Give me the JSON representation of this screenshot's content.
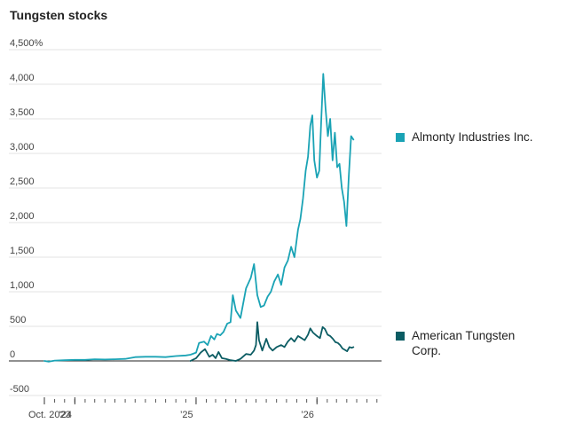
{
  "chart_data": {
    "type": "line",
    "title": "Tungsten stocks",
    "xlabel": "",
    "ylabel": "",
    "ylim": [
      -500,
      4500
    ],
    "yticks": [
      {
        "value": 4500,
        "label": "4,500%"
      },
      {
        "value": 4000,
        "label": "4,000"
      },
      {
        "value": 3500,
        "label": "3,500"
      },
      {
        "value": 3000,
        "label": "3,000"
      },
      {
        "value": 2500,
        "label": "2,500"
      },
      {
        "value": 2000,
        "label": "2,000"
      },
      {
        "value": 1500,
        "label": "1,500"
      },
      {
        "value": 1000,
        "label": "1,000"
      },
      {
        "value": 500,
        "label": "500"
      },
      {
        "value": 0,
        "label": "0"
      },
      {
        "value": -500,
        "label": "-500"
      }
    ],
    "xlim": [
      "2023-10-01",
      "2026-07-15"
    ],
    "xticks": [
      {
        "date": "2023-10-01",
        "label": "Oct. 2023"
      },
      {
        "date": "2024-01-01",
        "label": "’24"
      },
      {
        "date": "2025-01-01",
        "label": "’25"
      },
      {
        "date": "2026-01-01",
        "label": "’26"
      }
    ],
    "minor_ticks": [
      "2023-10-01",
      "2023-11-01",
      "2023-12-01",
      "2024-01-01",
      "2024-02-01",
      "2024-03-01",
      "2024-04-01",
      "2024-05-01",
      "2024-06-01",
      "2024-07-01",
      "2024-08-01",
      "2024-09-01",
      "2024-10-01",
      "2024-11-01",
      "2024-12-01",
      "2025-01-01",
      "2025-02-01",
      "2025-03-01",
      "2025-04-01",
      "2025-05-01",
      "2025-06-01",
      "2025-07-01",
      "2025-08-01",
      "2025-09-01",
      "2025-10-01",
      "2025-11-01",
      "2025-12-01",
      "2026-01-01",
      "2026-02-01",
      "2026-03-01",
      "2026-04-01",
      "2026-05-01",
      "2026-06-01",
      "2026-07-01"
    ],
    "grid": true,
    "legend": "right",
    "series": [
      {
        "name": "Almonty Industries Inc.",
        "color": "#1aa3b5",
        "points": [
          [
            "2023-10-01",
            0
          ],
          [
            "2023-10-15",
            -10
          ],
          [
            "2023-11-01",
            5
          ],
          [
            "2023-12-01",
            10
          ],
          [
            "2024-01-01",
            15
          ],
          [
            "2024-02-01",
            15
          ],
          [
            "2024-03-01",
            25
          ],
          [
            "2024-04-01",
            20
          ],
          [
            "2024-05-01",
            25
          ],
          [
            "2024-06-01",
            30
          ],
          [
            "2024-07-01",
            55
          ],
          [
            "2024-08-01",
            60
          ],
          [
            "2024-09-01",
            60
          ],
          [
            "2024-10-01",
            55
          ],
          [
            "2024-11-01",
            70
          ],
          [
            "2024-12-01",
            80
          ],
          [
            "2024-12-15",
            90
          ],
          [
            "2025-01-01",
            120
          ],
          [
            "2025-01-10",
            260
          ],
          [
            "2025-01-25",
            280
          ],
          [
            "2025-02-05",
            230
          ],
          [
            "2025-02-15",
            360
          ],
          [
            "2025-02-25",
            310
          ],
          [
            "2025-03-05",
            390
          ],
          [
            "2025-03-15",
            370
          ],
          [
            "2025-03-25",
            420
          ],
          [
            "2025-04-05",
            540
          ],
          [
            "2025-04-15",
            560
          ],
          [
            "2025-04-22",
            950
          ],
          [
            "2025-05-01",
            730
          ],
          [
            "2025-05-15",
            620
          ],
          [
            "2025-06-01",
            1050
          ],
          [
            "2025-06-15",
            1200
          ],
          [
            "2025-06-25",
            1400
          ],
          [
            "2025-07-05",
            950
          ],
          [
            "2025-07-15",
            780
          ],
          [
            "2025-07-25",
            800
          ],
          [
            "2025-08-05",
            930
          ],
          [
            "2025-08-15",
            1000
          ],
          [
            "2025-08-25",
            1150
          ],
          [
            "2025-09-05",
            1250
          ],
          [
            "2025-09-15",
            1100
          ],
          [
            "2025-09-25",
            1350
          ],
          [
            "2025-10-05",
            1450
          ],
          [
            "2025-10-15",
            1650
          ],
          [
            "2025-10-25",
            1500
          ],
          [
            "2025-11-05",
            1900
          ],
          [
            "2025-11-12",
            2050
          ],
          [
            "2025-11-20",
            2350
          ],
          [
            "2025-11-28",
            2750
          ],
          [
            "2025-12-05",
            2950
          ],
          [
            "2025-12-12",
            3400
          ],
          [
            "2025-12-18",
            3550
          ],
          [
            "2025-12-24",
            2900
          ],
          [
            "2026-01-01",
            2650
          ],
          [
            "2026-01-08",
            2750
          ],
          [
            "2026-01-14",
            3500
          ],
          [
            "2026-01-20",
            4150
          ],
          [
            "2026-01-27",
            3650
          ],
          [
            "2026-02-03",
            3250
          ],
          [
            "2026-02-10",
            3500
          ],
          [
            "2026-02-17",
            2900
          ],
          [
            "2026-02-24",
            3300
          ],
          [
            "2026-03-03",
            2800
          ],
          [
            "2026-03-10",
            2850
          ],
          [
            "2026-03-17",
            2500
          ],
          [
            "2026-03-24",
            2300
          ],
          [
            "2026-03-31",
            1950
          ],
          [
            "2026-04-07",
            2650
          ],
          [
            "2026-04-14",
            3250
          ],
          [
            "2026-04-21",
            3200
          ]
        ]
      },
      {
        "name": "American Tungsten Corp.",
        "color": "#0b5c63",
        "points": [
          [
            "2024-12-15",
            0
          ],
          [
            "2025-01-01",
            40
          ],
          [
            "2025-01-15",
            120
          ],
          [
            "2025-01-28",
            170
          ],
          [
            "2025-02-10",
            60
          ],
          [
            "2025-02-20",
            90
          ],
          [
            "2025-03-01",
            40
          ],
          [
            "2025-03-10",
            130
          ],
          [
            "2025-03-20",
            40
          ],
          [
            "2025-04-01",
            30
          ],
          [
            "2025-04-15",
            10
          ],
          [
            "2025-05-01",
            0
          ],
          [
            "2025-05-15",
            30
          ],
          [
            "2025-06-01",
            100
          ],
          [
            "2025-06-15",
            90
          ],
          [
            "2025-06-25",
            150
          ],
          [
            "2025-07-01",
            230
          ],
          [
            "2025-07-05",
            560
          ],
          [
            "2025-07-10",
            300
          ],
          [
            "2025-07-20",
            150
          ],
          [
            "2025-08-01",
            320
          ],
          [
            "2025-08-10",
            200
          ],
          [
            "2025-08-20",
            150
          ],
          [
            "2025-09-01",
            200
          ],
          [
            "2025-09-15",
            230
          ],
          [
            "2025-09-25",
            200
          ],
          [
            "2025-10-05",
            280
          ],
          [
            "2025-10-15",
            330
          ],
          [
            "2025-10-25",
            280
          ],
          [
            "2025-11-05",
            360
          ],
          [
            "2025-11-15",
            330
          ],
          [
            "2025-11-25",
            300
          ],
          [
            "2025-12-05",
            380
          ],
          [
            "2025-12-12",
            470
          ],
          [
            "2025-12-20",
            410
          ],
          [
            "2026-01-01",
            360
          ],
          [
            "2026-01-10",
            330
          ],
          [
            "2026-01-18",
            490
          ],
          [
            "2026-01-25",
            460
          ],
          [
            "2026-02-02",
            380
          ],
          [
            "2026-02-10",
            360
          ],
          [
            "2026-02-18",
            320
          ],
          [
            "2026-02-26",
            270
          ],
          [
            "2026-03-05",
            260
          ],
          [
            "2026-03-12",
            230
          ],
          [
            "2026-03-19",
            180
          ],
          [
            "2026-03-26",
            160
          ],
          [
            "2026-04-02",
            140
          ],
          [
            "2026-04-09",
            200
          ],
          [
            "2026-04-16",
            190
          ],
          [
            "2026-04-21",
            200
          ]
        ]
      }
    ]
  },
  "legend": {
    "almonty": {
      "label": "Almonty Industries Inc.",
      "color": "#1aa3b5"
    },
    "american_line1": "American Tungsten",
    "american_line2": "Corp.",
    "american_color": "#0b5c63"
  }
}
